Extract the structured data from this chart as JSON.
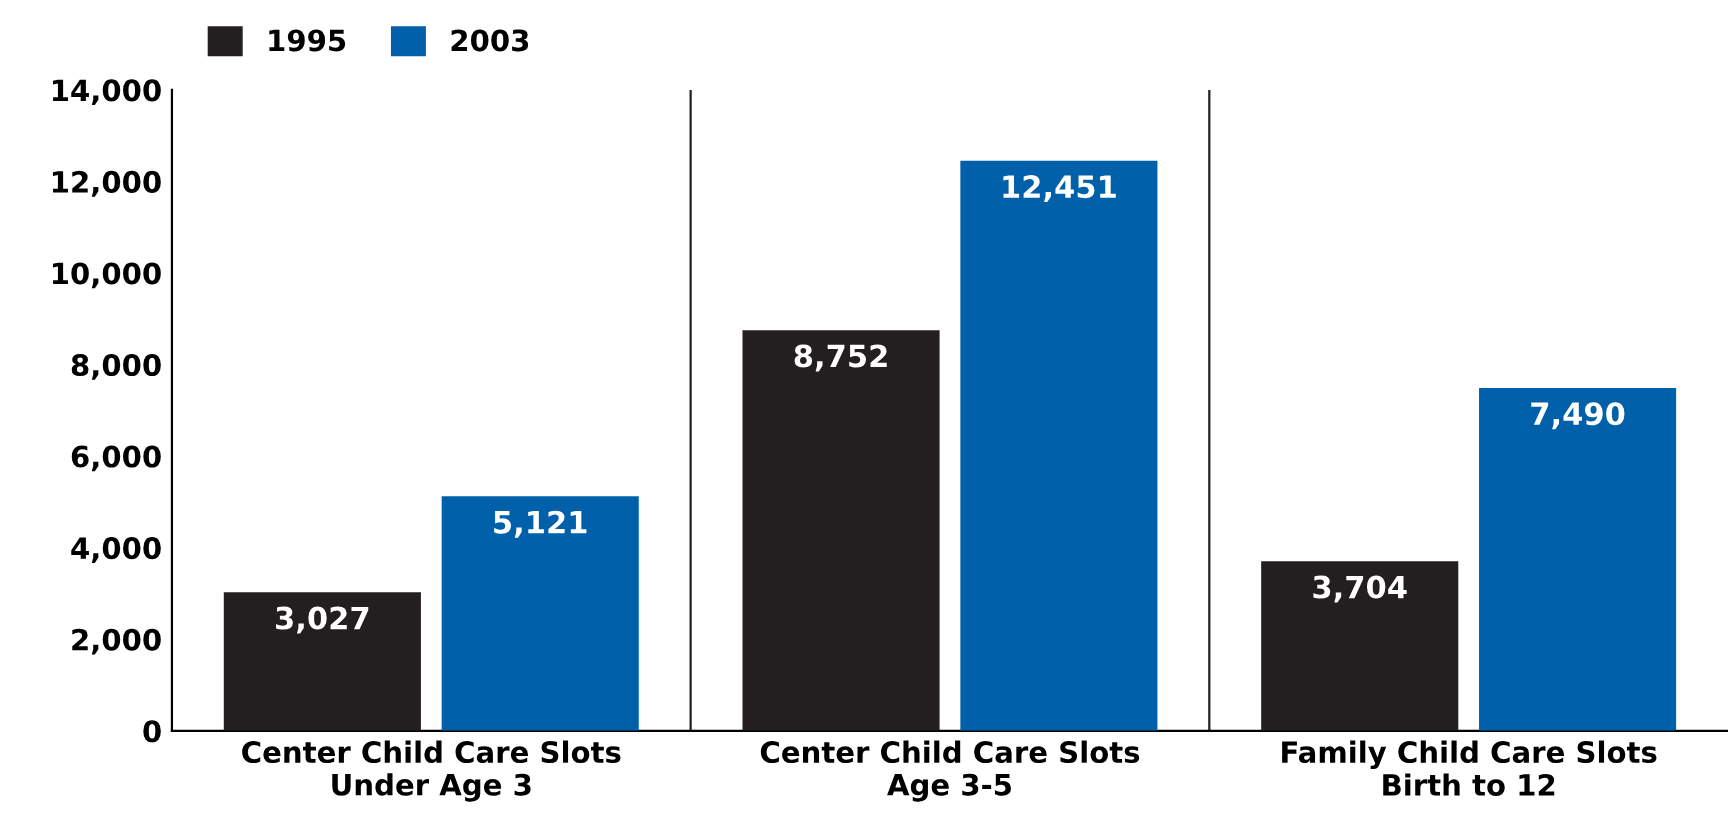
{
  "chart_data": {
    "type": "bar",
    "categories": [
      "Center Child Care Slots\nUnder Age 3",
      "Center Child Care Slots\nAge 3-5",
      "Family Child Care Slots\nBirth to 12"
    ],
    "series": [
      {
        "name": "1995",
        "color": "#231f20",
        "values": [
          3027,
          8752,
          3704
        ],
        "value_labels": [
          "3,027",
          "8,752",
          "3,704"
        ]
      },
      {
        "name": "2003",
        "color": "#0061aa",
        "values": [
          5121,
          12451,
          7490
        ],
        "value_labels": [
          "5,121",
          "12,451",
          "7,490"
        ]
      }
    ],
    "ylim": [
      0,
      14000
    ],
    "yticks": [
      {
        "value": 0,
        "label": "0"
      },
      {
        "value": 2000,
        "label": "2,000"
      },
      {
        "value": 4000,
        "label": "4,000"
      },
      {
        "value": 6000,
        "label": "6,000"
      },
      {
        "value": 8000,
        "label": "8,000"
      },
      {
        "value": 10000,
        "label": "10,000"
      },
      {
        "value": 12000,
        "label": "12,000"
      },
      {
        "value": 14000,
        "label": "14,000"
      }
    ],
    "grid": "x",
    "legend": "top left"
  }
}
